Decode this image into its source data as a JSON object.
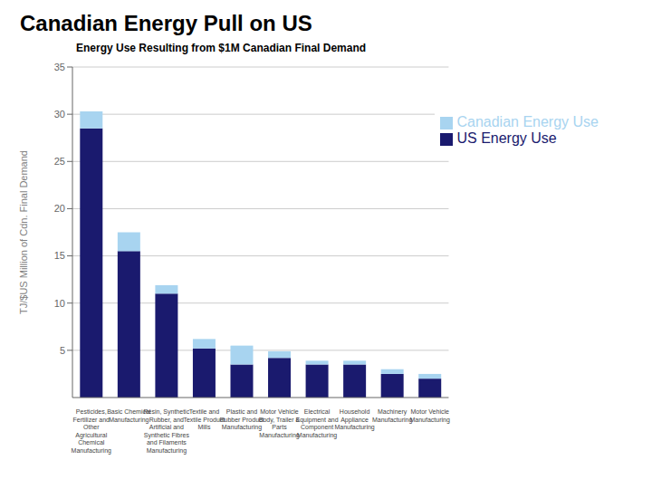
{
  "chart_data": {
    "type": "bar",
    "stacked": true,
    "title": "Canadian Energy Pull on US",
    "subtitle": "Energy Use Resulting from $1M Canadian Final Demand",
    "ylabel": "TJ/$US Million of Cdn. Final Demand",
    "categories": [
      "Pesticides,\nFertilizer and\nOther\nAgricultural\nChemical\nManufacturing",
      "Basic Chemical\nManufacturing",
      "Resin, Synthetic\nRubber, and\nArtificial and\nSynthetic Fibres\nand Filaments\nManufacturing",
      "Textile and\nTextile Product\nMills",
      "Plastic and\nRubber Product\nManufacturing",
      "Motor Vehicle\nBody, Trailer &\nParts\nManufacturing",
      "Electrical\nEquipment and\nComponent\nManufacturing",
      "Household\nAppliance\nManufacturing",
      "Machinery\nManufacturing",
      "Motor Vehicle\nManufacturing"
    ],
    "series": [
      {
        "name": "US Energy Use",
        "color": "#1a1a6e",
        "values": [
          28.5,
          15.5,
          11.0,
          5.2,
          3.5,
          4.2,
          3.5,
          3.5,
          2.5,
          2.0
        ]
      },
      {
        "name": "Canadian Energy Use",
        "color": "#a8d4f0",
        "values": [
          1.8,
          2.0,
          0.9,
          1.0,
          2.0,
          0.7,
          0.4,
          0.4,
          0.5,
          0.5
        ]
      }
    ],
    "ylim": [
      0,
      35
    ],
    "yticks": [
      5,
      10,
      15,
      20,
      25,
      30,
      35
    ],
    "grid": true,
    "legend": "upper right"
  }
}
